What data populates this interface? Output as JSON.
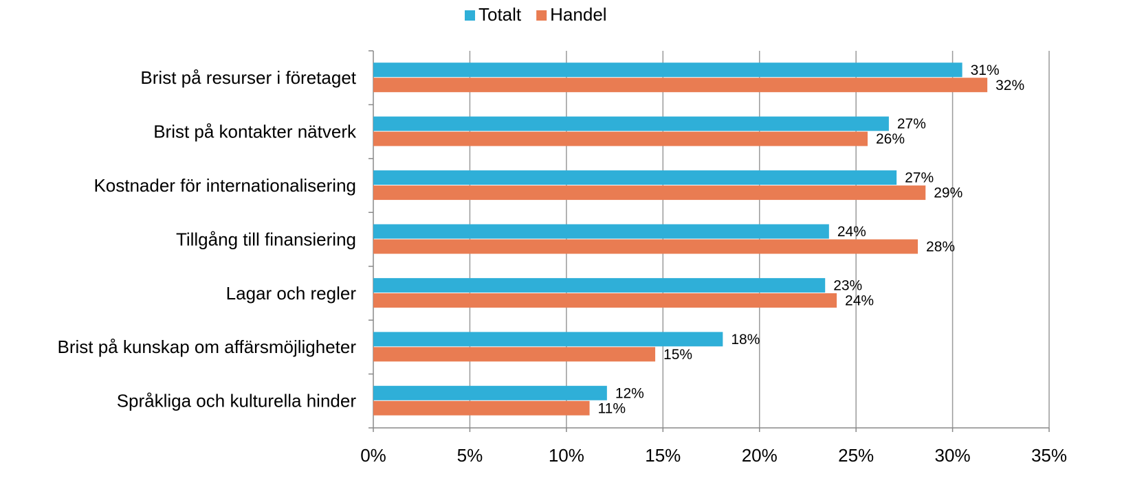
{
  "chart_data": {
    "type": "barh",
    "categories": [
      "Brist på resurser i företaget",
      "Brist på kontakter nätverk",
      "Kostnader för internationalisering",
      "Tillgång till finansiering",
      "Lagar och regler",
      "Brist på kunskap om affärsmöjligheter",
      "Språkliga och kulturella hinder"
    ],
    "series": [
      {
        "name": "Totalt",
        "color": "#2fafd8",
        "values": [
          30.5,
          26.7,
          27.1,
          23.6,
          23.4,
          18.1,
          12.1
        ],
        "value_labels": [
          "31%",
          "27%",
          "27%",
          "24%",
          "23%",
          "18%",
          "12%"
        ]
      },
      {
        "name": "Handel",
        "color": "#e97c52",
        "values": [
          31.8,
          25.6,
          28.6,
          28.2,
          24.0,
          14.6,
          11.2
        ],
        "value_labels": [
          "32%",
          "26%",
          "29%",
          "28%",
          "24%",
          "15%",
          "11%"
        ]
      }
    ],
    "xlim": [
      0,
      35
    ],
    "xticks": [
      {
        "value": 0,
        "label": "0%"
      },
      {
        "value": 5,
        "label": "5%"
      },
      {
        "value": 10,
        "label": "10%"
      },
      {
        "value": 15,
        "label": "15%"
      },
      {
        "value": 20,
        "label": "20%"
      },
      {
        "value": 25,
        "label": "25%"
      },
      {
        "value": 30,
        "label": "30%"
      },
      {
        "value": 35,
        "label": "35%"
      }
    ],
    "grid": true,
    "legend": "top"
  }
}
